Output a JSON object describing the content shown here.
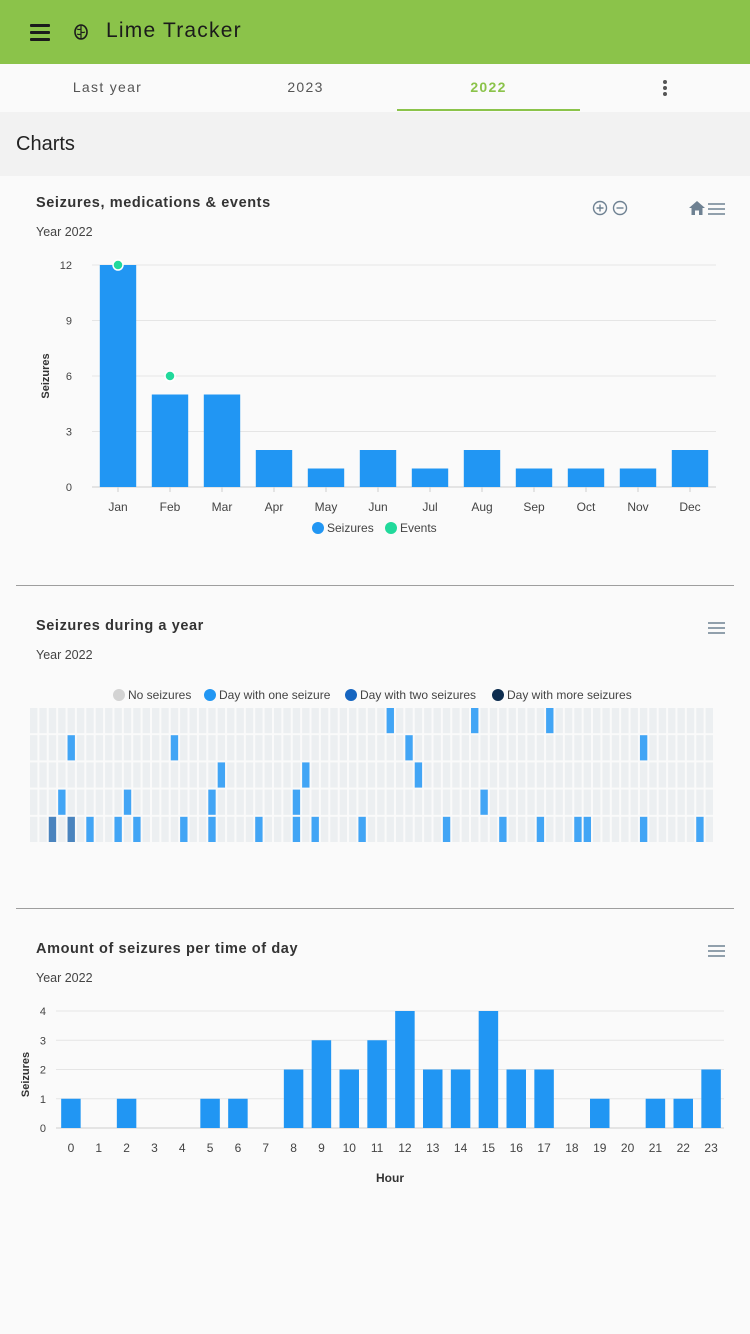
{
  "app": {
    "title": "Lime Tracker"
  },
  "tabs": [
    {
      "label": "Last year"
    },
    {
      "label": "2023"
    },
    {
      "label": "2022"
    }
  ],
  "active_tab": "2022",
  "section": {
    "title": "Charts"
  },
  "colors": {
    "appbar": "#8bc34a",
    "accent": "#8bc34a",
    "seizures": "#2196f3",
    "events": "#21d99b",
    "no_seizure": "#eceff1",
    "two_seizures": "#1565c0",
    "more_seizures": "#0d2d4f"
  },
  "charts": {
    "monthly": {
      "title": "Seizures, medications & events",
      "subtitle": "Year 2022",
      "ylabel": "Seizures",
      "legend": {
        "seizures": "Seizures",
        "events": "Events"
      }
    },
    "heatmap": {
      "title": "Seizures during a year",
      "subtitle": "Year 2022",
      "legend": {
        "none": "No seizures",
        "one": "Day with one seizure",
        "two": "Day with two seizures",
        "more": "Day with more seizures"
      }
    },
    "hourly": {
      "title": "Amount of seizures per time of day",
      "subtitle": "Year 2022",
      "ylabel": "Seizures",
      "xlabel": "Hour"
    }
  },
  "chart_data": [
    {
      "type": "bar",
      "title": "Seizures, medications & events",
      "subtitle": "Year 2022",
      "categories": [
        "Jan",
        "Feb",
        "Mar",
        "Apr",
        "May",
        "Jun",
        "Jul",
        "Aug",
        "Sep",
        "Oct",
        "Nov",
        "Dec"
      ],
      "series": [
        {
          "name": "Seizures",
          "type": "bar",
          "values": [
            12,
            5,
            5,
            2,
            1,
            2,
            1,
            2,
            1,
            1,
            1,
            2
          ]
        },
        {
          "name": "Events",
          "type": "scatter",
          "points": [
            {
              "x": "Jan",
              "y": 12
            },
            {
              "x": "Feb",
              "y": 6
            }
          ]
        }
      ],
      "ylabel": "Seizures",
      "ylim": [
        0,
        12
      ],
      "yticks": [
        0,
        3,
        6,
        9,
        12
      ],
      "grid": true,
      "legend": "bottom"
    },
    {
      "type": "heatmap",
      "title": "Seizures during a year",
      "subtitle": "Year 2022",
      "rows": 5,
      "columns": 73,
      "levels": [
        "No seizures",
        "Day with one seizure",
        "Day with two seizures",
        "Day with more seizures"
      ],
      "cells": [
        {
          "row": 0,
          "col": 38,
          "level": 1
        },
        {
          "row": 0,
          "col": 47,
          "level": 1
        },
        {
          "row": 0,
          "col": 55,
          "level": 1
        },
        {
          "row": 1,
          "col": 4,
          "level": 1
        },
        {
          "row": 1,
          "col": 15,
          "level": 1
        },
        {
          "row": 1,
          "col": 40,
          "level": 1
        },
        {
          "row": 1,
          "col": 65,
          "level": 1
        },
        {
          "row": 2,
          "col": 20,
          "level": 1
        },
        {
          "row": 2,
          "col": 29,
          "level": 1
        },
        {
          "row": 2,
          "col": 41,
          "level": 1
        },
        {
          "row": 3,
          "col": 3,
          "level": 1
        },
        {
          "row": 3,
          "col": 10,
          "level": 1
        },
        {
          "row": 3,
          "col": 19,
          "level": 1
        },
        {
          "row": 3,
          "col": 28,
          "level": 1
        },
        {
          "row": 3,
          "col": 48,
          "level": 1
        },
        {
          "row": 4,
          "col": 2,
          "level": 2
        },
        {
          "row": 4,
          "col": 4,
          "level": 2
        },
        {
          "row": 4,
          "col": 6,
          "level": 1
        },
        {
          "row": 4,
          "col": 9,
          "level": 1
        },
        {
          "row": 4,
          "col": 11,
          "level": 1
        },
        {
          "row": 4,
          "col": 16,
          "level": 1
        },
        {
          "row": 4,
          "col": 19,
          "level": 1
        },
        {
          "row": 4,
          "col": 24,
          "level": 1
        },
        {
          "row": 4,
          "col": 28,
          "level": 1
        },
        {
          "row": 4,
          "col": 30,
          "level": 1
        },
        {
          "row": 4,
          "col": 35,
          "level": 1
        },
        {
          "row": 4,
          "col": 44,
          "level": 1
        },
        {
          "row": 4,
          "col": 50,
          "level": 1
        },
        {
          "row": 4,
          "col": 54,
          "level": 1
        },
        {
          "row": 4,
          "col": 58,
          "level": 1
        },
        {
          "row": 4,
          "col": 59,
          "level": 1
        },
        {
          "row": 4,
          "col": 65,
          "level": 1
        },
        {
          "row": 4,
          "col": 71,
          "level": 1
        }
      ],
      "legend": "top"
    },
    {
      "type": "bar",
      "title": "Amount of seizures per time of day",
      "subtitle": "Year 2022",
      "categories": [
        "0",
        "1",
        "2",
        "3",
        "4",
        "5",
        "6",
        "7",
        "8",
        "9",
        "10",
        "11",
        "12",
        "13",
        "14",
        "15",
        "16",
        "17",
        "18",
        "19",
        "20",
        "21",
        "22",
        "23"
      ],
      "series": [
        {
          "name": "Seizures",
          "values": [
            1,
            0,
            1,
            0,
            0,
            1,
            1,
            0,
            2,
            3,
            2,
            3,
            4,
            2,
            2,
            4,
            2,
            2,
            0,
            1,
            0,
            1,
            1,
            2
          ]
        }
      ],
      "xlabel": "Hour",
      "ylabel": "Seizures",
      "ylim": [
        0,
        4
      ],
      "yticks": [
        0,
        1,
        2,
        3,
        4
      ],
      "grid": true
    }
  ]
}
